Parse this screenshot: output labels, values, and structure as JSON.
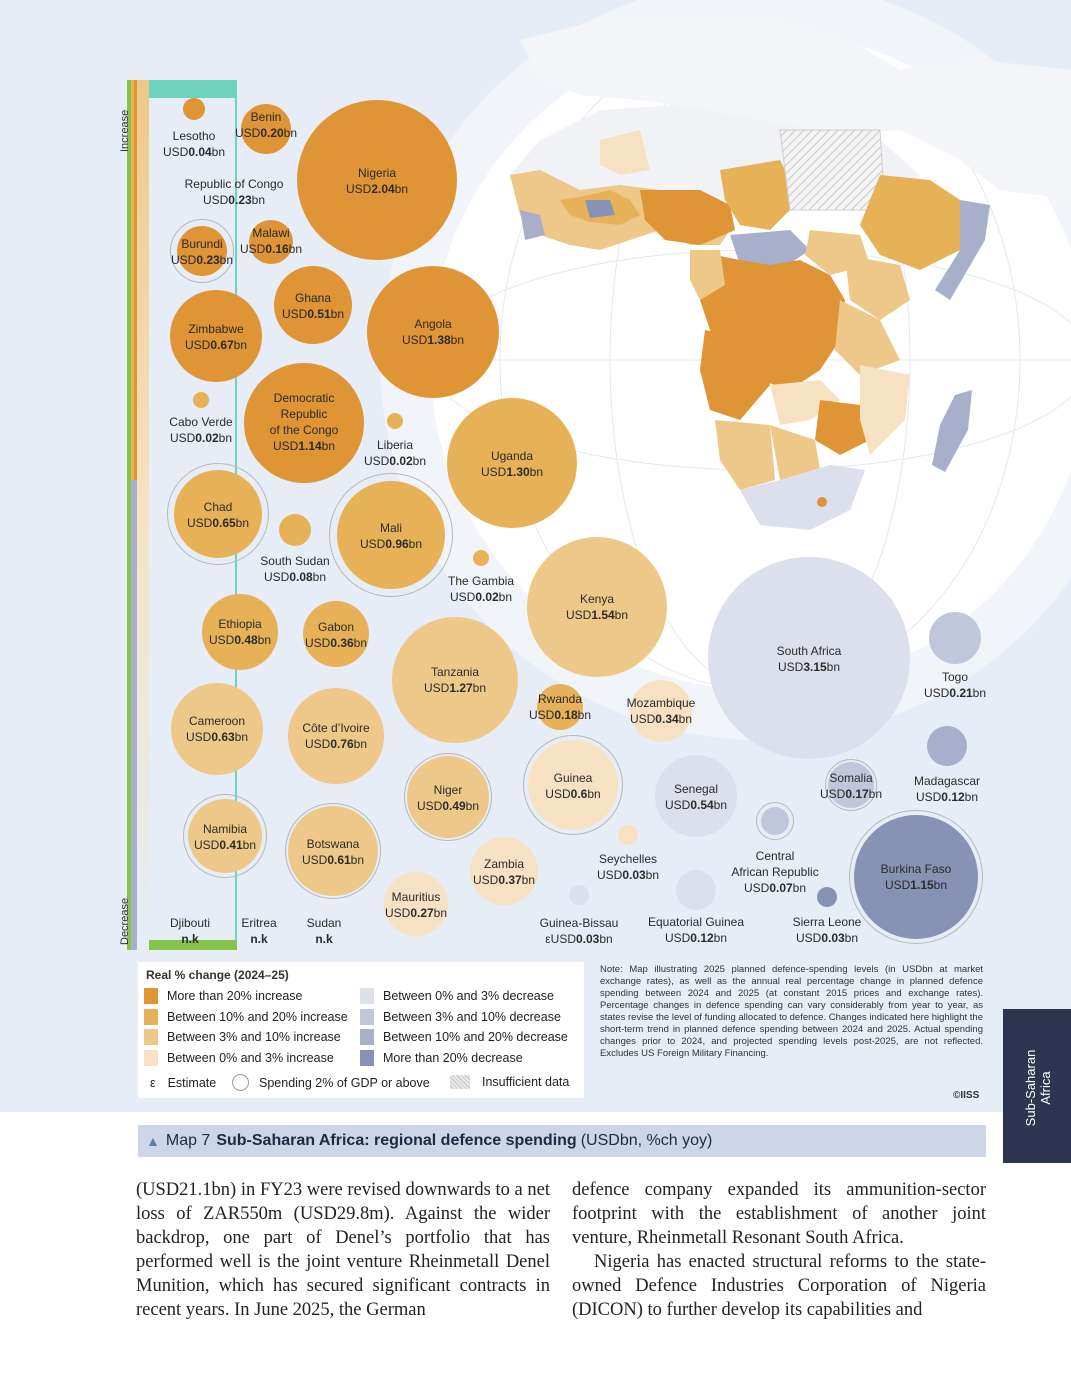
{
  "axis": {
    "increase_label": "Increase",
    "decrease_label": "Decrease"
  },
  "colors": {
    "more_than_20_increase": "#df9435",
    "10_to_20_increase": "#e7b257",
    "3_to_10_increase": "#eec889",
    "0_to_3_increase": "#f6e2c2",
    "0_to_3_decrease": "#dcdfec",
    "3_to_10_decrease": "#c0c7da",
    "10_to_20_decrease": "#a7afcb",
    "more_than_20_decrease": "#8892b5",
    "map_background": "#e6edf6",
    "caption_bar": "#ccd6e6",
    "side_tab": "#2e3550"
  },
  "countries": [
    {
      "name": "Lesotho",
      "prefix": "USD",
      "value": "0.04",
      "unit": "bn",
      "category": "more_than_20_increase",
      "two_percent_gdp": false
    },
    {
      "name": "Benin",
      "prefix": "USD",
      "value": "0.20",
      "unit": "bn",
      "category": "more_than_20_increase",
      "two_percent_gdp": false
    },
    {
      "name": "Nigeria",
      "prefix": "USD",
      "value": "2.04",
      "unit": "bn",
      "category": "more_than_20_increase",
      "two_percent_gdp": false
    },
    {
      "name": "Republic of Congo",
      "prefix": "USD",
      "value": "0.23",
      "unit": "bn",
      "category": "more_than_20_increase",
      "two_percent_gdp": false
    },
    {
      "name": "Burundi",
      "prefix": "USD",
      "value": "0.23",
      "unit": "bn",
      "category": "more_than_20_increase",
      "two_percent_gdp": true
    },
    {
      "name": "Malawi",
      "prefix": "USD",
      "value": "0.16",
      "unit": "bn",
      "category": "more_than_20_increase",
      "two_percent_gdp": false
    },
    {
      "name": "Ghana",
      "prefix": "USD",
      "value": "0.51",
      "unit": "bn",
      "category": "more_than_20_increase",
      "two_percent_gdp": false
    },
    {
      "name": "Zimbabwe",
      "prefix": "USD",
      "value": "0.67",
      "unit": "bn",
      "category": "more_than_20_increase",
      "two_percent_gdp": false
    },
    {
      "name": "Angola",
      "prefix": "USD",
      "value": "1.38",
      "unit": "bn",
      "category": "more_than_20_increase",
      "two_percent_gdp": false
    },
    {
      "name": "Cabo Verde",
      "prefix": "USD",
      "value": "0.02",
      "unit": "bn",
      "category": "10_to_20_increase",
      "two_percent_gdp": false
    },
    {
      "name": "Democratic Republic of the Congo",
      "prefix": "USD",
      "value": "1.14",
      "unit": "bn",
      "category": "more_than_20_increase",
      "two_percent_gdp": false
    },
    {
      "name": "Liberia",
      "prefix": "USD",
      "value": "0.02",
      "unit": "bn",
      "category": "10_to_20_increase",
      "two_percent_gdp": false
    },
    {
      "name": "Uganda",
      "prefix": "USD",
      "value": "1.30",
      "unit": "bn",
      "category": "10_to_20_increase",
      "two_percent_gdp": false
    },
    {
      "name": "Chad",
      "prefix": "USD",
      "value": "0.65",
      "unit": "bn",
      "category": "10_to_20_increase",
      "two_percent_gdp": true
    },
    {
      "name": "South Sudan",
      "prefix": "USD",
      "value": "0.08",
      "unit": "bn",
      "category": "10_to_20_increase",
      "two_percent_gdp": false
    },
    {
      "name": "Mali",
      "prefix": "USD",
      "value": "0.96",
      "unit": "bn",
      "category": "10_to_20_increase",
      "two_percent_gdp": true
    },
    {
      "name": "The Gambia",
      "prefix": "USD",
      "value": "0.02",
      "unit": "bn",
      "category": "10_to_20_increase",
      "two_percent_gdp": false
    },
    {
      "name": "Kenya",
      "prefix": "USD",
      "value": "1.54",
      "unit": "bn",
      "category": "3_to_10_increase",
      "two_percent_gdp": false
    },
    {
      "name": "Ethiopia",
      "prefix": "USD",
      "value": "0.48",
      "unit": "bn",
      "category": "10_to_20_increase",
      "two_percent_gdp": false
    },
    {
      "name": "Gabon",
      "prefix": "USD",
      "value": "0.36",
      "unit": "bn",
      "category": "10_to_20_increase",
      "two_percent_gdp": false
    },
    {
      "name": "Tanzania",
      "prefix": "USD",
      "value": "1.27",
      "unit": "bn",
      "category": "3_to_10_increase",
      "two_percent_gdp": false
    },
    {
      "name": "South Africa",
      "prefix": "USD",
      "value": "3.15",
      "unit": "bn",
      "category": "0_to_3_decrease",
      "two_percent_gdp": false
    },
    {
      "name": "Togo",
      "prefix": "USD",
      "value": "0.21",
      "unit": "bn",
      "category": "3_to_10_decrease",
      "two_percent_gdp": false
    },
    {
      "name": "Cameroon",
      "prefix": "USD",
      "value": "0.63",
      "unit": "bn",
      "category": "3_to_10_increase",
      "two_percent_gdp": false
    },
    {
      "name": "Côte d’Ivoire",
      "prefix": "USD",
      "value": "0.76",
      "unit": "bn",
      "category": "3_to_10_increase",
      "two_percent_gdp": false
    },
    {
      "name": "Rwanda",
      "prefix": "USD",
      "value": "0.18",
      "unit": "bn",
      "category": "10_to_20_increase",
      "two_percent_gdp": false
    },
    {
      "name": "Mozambique",
      "prefix": "USD",
      "value": "0.34",
      "unit": "bn",
      "category": "0_to_3_increase",
      "two_percent_gdp": false
    },
    {
      "name": "Madagascar",
      "prefix": "USD",
      "value": "0.12",
      "unit": "bn",
      "category": "10_to_20_decrease",
      "two_percent_gdp": false
    },
    {
      "name": "Niger",
      "prefix": "USD",
      "value": "0.49",
      "unit": "bn",
      "category": "3_to_10_increase",
      "two_percent_gdp": true
    },
    {
      "name": "Guinea",
      "prefix": "USD",
      "value": "0.6",
      "unit": "bn",
      "category": "0_to_3_increase",
      "two_percent_gdp": true
    },
    {
      "name": "Senegal",
      "prefix": "USD",
      "value": "0.54",
      "unit": "bn",
      "category": "0_to_3_decrease",
      "two_percent_gdp": false
    },
    {
      "name": "Somalia",
      "prefix": "USD",
      "value": "0.17",
      "unit": "bn",
      "category": "3_to_10_decrease",
      "two_percent_gdp": true
    },
    {
      "name": "Namibia",
      "prefix": "USD",
      "value": "0.41",
      "unit": "bn",
      "category": "3_to_10_increase",
      "two_percent_gdp": true
    },
    {
      "name": "Botswana",
      "prefix": "USD",
      "value": "0.61",
      "unit": "bn",
      "category": "3_to_10_increase",
      "two_percent_gdp": true
    },
    {
      "name": "Central African Republic",
      "prefix": "USD",
      "value": "0.07",
      "unit": "bn",
      "category": "3_to_10_decrease",
      "two_percent_gdp": true
    },
    {
      "name": "Zambia",
      "prefix": "USD",
      "value": "0.37",
      "unit": "bn",
      "category": "0_to_3_increase",
      "two_percent_gdp": false
    },
    {
      "name": "Seychelles",
      "prefix": "USD",
      "value": "0.03",
      "unit": "bn",
      "category": "0_to_3_increase",
      "two_percent_gdp": false
    },
    {
      "name": "Burkina Faso",
      "prefix": "USD",
      "value": "1.15",
      "unit": "bn",
      "category": "more_than_20_decrease",
      "two_percent_gdp": true
    },
    {
      "name": "Mauritius",
      "prefix": "USD",
      "value": "0.27",
      "unit": "bn",
      "category": "0_to_3_increase",
      "two_percent_gdp": false
    },
    {
      "name": "Guinea-Bissau",
      "prefix": "εUSD",
      "value": "0.03",
      "unit": "bn",
      "category": "0_to_3_decrease",
      "two_percent_gdp": false
    },
    {
      "name": "Equatorial Guinea",
      "prefix": "USD",
      "value": "0.12",
      "unit": "bn",
      "category": "0_to_3_decrease",
      "two_percent_gdp": false
    },
    {
      "name": "Sierra Leone",
      "prefix": "USD",
      "value": "0.03",
      "unit": "bn",
      "category": "more_than_20_decrease",
      "two_percent_gdp": false
    },
    {
      "name": "Djibouti",
      "prefix": "",
      "value": "n.k",
      "unit": "",
      "category": null,
      "two_percent_gdp": false
    },
    {
      "name": "Eritrea",
      "prefix": "",
      "value": "n.k",
      "unit": "",
      "category": null,
      "two_percent_gdp": false
    },
    {
      "name": "Sudan",
      "prefix": "",
      "value": "n.k",
      "unit": "",
      "category": null,
      "two_percent_gdp": false
    }
  ],
  "legend": {
    "title": "Real % change (2024–25)",
    "items": [
      {
        "label": "More than 20% increase",
        "color_key": "more_than_20_increase"
      },
      {
        "label": "Between 10% and 20% increase",
        "color_key": "10_to_20_increase"
      },
      {
        "label": "Between 3% and 10% increase",
        "color_key": "3_to_10_increase"
      },
      {
        "label": "Between 0% and 3% increase",
        "color_key": "0_to_3_increase"
      },
      {
        "label": "Between 0% and 3% decrease",
        "color_key": "0_to_3_decrease"
      },
      {
        "label": "Between 3% and 10% decrease",
        "color_key": "3_to_10_decrease"
      },
      {
        "label": "Between 10% and 20% decrease",
        "color_key": "10_to_20_decrease"
      },
      {
        "label": "More than 20% decrease",
        "color_key": "more_than_20_decrease"
      }
    ],
    "estimate_symbol": "ε",
    "estimate_label": "Estimate",
    "gdp_label": "Spending 2% of GDP or above",
    "insufficient_label": "Insufficient data"
  },
  "note": "Note: Map illustrating 2025 planned defence-spending levels (in USDbn at market exchange rates), as well as the annual real percentage change in planned defence spending between 2024 and 2025 (at constant 2015 prices and exchange rates). Percentage changes in defence spending can vary considerably from year to year, as states revise the level of funding allocated to defence. Changes indicated here highlight the short-term trend in planned defence spending between 2024 and 2025. Actual spending changes prior to 2024, and projected spending levels post-2025, are not reflected. Excludes US Foreign Military Financing.",
  "credit": "©IISS",
  "side_tab": "Sub-Saharan\nAfrica",
  "caption": {
    "map_number": "Map 7",
    "title": "Sub-Saharan Africa: regional defence spending",
    "units": "(USDbn, %ch yoy)"
  },
  "body": {
    "left": "(USD21.1bn) in FY23 were revised downwards to a net loss of ZAR550m (USD29.8m). Against the wider backdrop, one part of Denel’s portfolio that has performed well is the joint venture Rheinmetall Denel Munition, which has secured significant contracts in recent years. In June 2025, the German",
    "right_1": "defence company expanded its ammunition-sector footprint with the establishment of another joint venture, Rheinmetall Resonant South Africa.",
    "right_2": "Nigeria has enacted structural reforms to the state-owned Defence Industries Corporation of Nigeria (DICON) to further develop its capabilities and"
  }
}
